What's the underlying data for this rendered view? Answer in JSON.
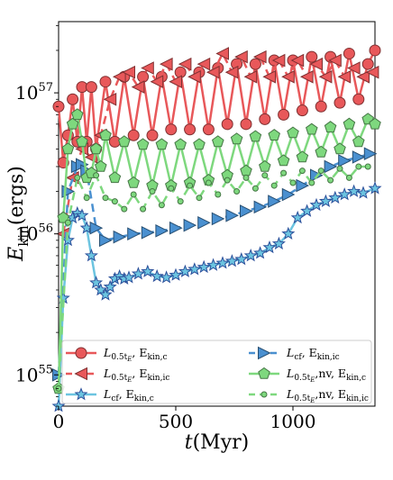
{
  "chart_data": {
    "type": "line",
    "xlabel": "t(Myr)",
    "ylabel": "E_kin(ergs)",
    "xlim": [
      0,
      1350
    ],
    "ylim": [
      6e+54,
      3.2e+57
    ],
    "yscale": "log",
    "x_ticks": [
      0,
      500,
      1000
    ],
    "x_tick_labels": [
      "0",
      "500",
      "1000"
    ],
    "y_ticks": [
      1e+55,
      1e+56,
      1e+57
    ],
    "y_tick_labels": [
      "10",
      "10",
      "10"
    ],
    "y_tick_exponents": [
      "55",
      "56",
      "57"
    ],
    "grid": false,
    "legend_position": "bottom",
    "series": [
      {
        "name": "L_{0.5tE}, E_{kin,c}",
        "label_main": "L",
        "label_sub": "0.5t",
        "label_sub2": "E",
        "label_rest": ", E",
        "label_rest_sub": "kin,c",
        "color": "#e8585a",
        "marker": "circle",
        "dash": "solid",
        "x": [
          0,
          20,
          40,
          60,
          80,
          100,
          120,
          140,
          160,
          200,
          240,
          280,
          320,
          360,
          400,
          440,
          480,
          520,
          560,
          600,
          640,
          680,
          720,
          760,
          800,
          840,
          880,
          920,
          960,
          1000,
          1040,
          1080,
          1120,
          1160,
          1200,
          1240,
          1280,
          1320,
          1350
        ],
        "y": [
          8e+56,
          3.2e+56,
          5e+56,
          9e+56,
          4.5e+56,
          1.1e+57,
          4.5e+56,
          1.1e+57,
          4e+56,
          1.2e+57,
          4.5e+56,
          1.3e+57,
          5e+56,
          1.3e+57,
          5e+56,
          1.3e+57,
          5.5e+56,
          1.4e+57,
          5.5e+56,
          1.4e+57,
          5.5e+56,
          1.5e+57,
          6e+56,
          1.6e+57,
          6e+56,
          1.6e+57,
          6.5e+56,
          1.7e+57,
          7e+56,
          1.7e+57,
          7.5e+56,
          1.8e+57,
          8e+56,
          1.8e+57,
          8.5e+56,
          1.9e+57,
          9e+56,
          1.6e+57,
          2e+57
        ]
      },
      {
        "name": "L_{0.5tE}, E_{kin,ic}",
        "label_main": "L",
        "label_sub": "0.5t",
        "label_sub2": "E",
        "label_rest": ", E",
        "label_rest_sub": "kin,ic",
        "color": "#e8585a",
        "marker": "triangle-left",
        "dash": "dashed",
        "x": [
          20,
          60,
          100,
          140,
          180,
          220,
          260,
          300,
          340,
          380,
          420,
          460,
          500,
          540,
          580,
          620,
          660,
          700,
          740,
          780,
          820,
          860,
          900,
          940,
          980,
          1020,
          1060,
          1100,
          1140,
          1180,
          1220,
          1260,
          1300,
          1340
        ],
        "y": [
          1e+56,
          2.5e+56,
          4e+56,
          3.5e+56,
          5e+56,
          9e+56,
          1.3e+57,
          1.4e+57,
          1.1e+57,
          1.5e+57,
          1.2e+57,
          1.6e+57,
          1.2e+57,
          1.6e+57,
          1.3e+57,
          1.6e+57,
          1.4e+57,
          1.9e+57,
          1.4e+57,
          1.8e+57,
          1.3e+57,
          1.8e+57,
          1.3e+57,
          1.7e+57,
          1.3e+57,
          1.7e+57,
          1.3e+57,
          1.6e+57,
          1.3e+57,
          1.7e+57,
          1.3e+57,
          1.5e+57,
          1.3e+57,
          1.4e+57
        ]
      },
      {
        "name": "L_cf, E_{kin,c}",
        "label_main": "L",
        "label_sub": "cf",
        "label_sub2": "",
        "label_rest": ", E",
        "label_rest_sub": "kin,c",
        "color": "#6cc4e0",
        "marker": "star",
        "dash": "solid",
        "x": [
          0,
          20,
          40,
          60,
          80,
          100,
          120,
          140,
          160,
          180,
          200,
          220,
          240,
          260,
          280,
          300,
          340,
          380,
          420,
          460,
          500,
          540,
          580,
          620,
          660,
          700,
          740,
          780,
          820,
          860,
          900,
          940,
          980,
          1020,
          1060,
          1100,
          1140,
          1180,
          1220,
          1260,
          1300,
          1350
        ],
        "y": [
          6e+54,
          3.5e+55,
          9e+55,
          1.3e+56,
          1.4e+56,
          1.35e+56,
          1.1e+56,
          7e+55,
          4.5e+55,
          4e+55,
          3.7e+55,
          4.2e+55,
          4.8e+55,
          5e+55,
          4.8e+55,
          4.9e+55,
          5.2e+55,
          5.4e+55,
          5e+55,
          4.9e+55,
          5.1e+55,
          5.4e+55,
          5.6e+55,
          5.8e+55,
          6e+55,
          6.2e+55,
          6.4e+55,
          6.6e+55,
          7e+55,
          7.3e+55,
          8e+55,
          8.5e+55,
          1e+56,
          1.3e+56,
          1.45e+56,
          1.6e+56,
          1.7e+56,
          1.8e+56,
          1.9e+56,
          2e+56,
          1.95e+56,
          2.1e+56
        ]
      },
      {
        "name": "L_cf, E_{kin,ic}",
        "label_main": "L",
        "label_sub": "cf",
        "label_sub2": "",
        "label_rest": ", E",
        "label_rest_sub": "kin,ic",
        "color": "#4a90d0",
        "marker": "triangle-right",
        "dash": "dashed",
        "x": [
          0,
          40,
          80,
          100,
          120,
          160,
          200,
          260,
          320,
          380,
          440,
          500,
          560,
          620,
          680,
          740,
          800,
          860,
          920,
          980,
          1040,
          1100,
          1160,
          1220,
          1280,
          1330
        ],
        "y": [
          1e+55,
          2e+56,
          3e+56,
          3.1e+56,
          2.8e+56,
          1.1e+56,
          9e+55,
          9.5e+55,
          1e+56,
          1.02e+56,
          1.05e+56,
          1.1e+56,
          1.15e+56,
          1.2e+56,
          1.28e+56,
          1.35e+56,
          1.45e+56,
          1.55e+56,
          1.7e+56,
          1.9e+56,
          2.2e+56,
          2.6e+56,
          3e+56,
          3.3e+56,
          3.5e+56,
          3.7e+56
        ]
      },
      {
        "name": "L_{0.5tE,nv}, E_{kin,c}",
        "label_main": "L",
        "label_sub": "0.5t",
        "label_sub2": "E",
        "label_rest": ",nv, E",
        "label_rest_sub": "kin,c",
        "color": "#7ed87e",
        "marker": "pentagon",
        "dash": "solid",
        "x": [
          0,
          20,
          40,
          60,
          80,
          100,
          120,
          140,
          160,
          180,
          200,
          240,
          280,
          320,
          360,
          400,
          440,
          480,
          520,
          560,
          600,
          640,
          680,
          720,
          760,
          800,
          840,
          880,
          920,
          960,
          1000,
          1040,
          1080,
          1120,
          1160,
          1200,
          1240,
          1280,
          1320,
          1350
        ],
        "y": [
          8e+54,
          1.3e+56,
          4e+56,
          6e+56,
          7e+56,
          4.5e+56,
          2.5e+56,
          2.7e+56,
          4e+56,
          3e+56,
          5e+56,
          2.5e+56,
          4.5e+56,
          2.3e+56,
          4.3e+56,
          2.2e+56,
          4.3e+56,
          2.2e+56,
          4.3e+56,
          2.3e+56,
          4.3e+56,
          2.4e+56,
          4.5e+56,
          2.6e+56,
          4.7e+56,
          2.8e+56,
          4.9e+56,
          3e+56,
          5e+56,
          3.3e+56,
          5.2e+56,
          3.5e+56,
          5.5e+56,
          3.8e+56,
          5.7e+56,
          4e+56,
          6e+56,
          4.5e+56,
          6.5e+56,
          6e+56
        ]
      },
      {
        "name": "L_{0.5tE,nv}, E_{kin,ic}",
        "label_main": "L",
        "label_sub": "0.5t",
        "label_sub2": "E",
        "label_rest": ",nv, E",
        "label_rest_sub": "kin,ic",
        "color": "#7ed87e",
        "marker": "small-circle",
        "dash": "dashed",
        "x": [
          0,
          40,
          80,
          120,
          160,
          200,
          240,
          280,
          320,
          360,
          400,
          440,
          480,
          520,
          560,
          600,
          640,
          680,
          720,
          760,
          800,
          840,
          880,
          920,
          960,
          1000,
          1040,
          1080,
          1120,
          1160,
          1200,
          1240,
          1280,
          1320
        ],
        "y": [
          8e+54,
          1.2e+56,
          2.5e+56,
          1.8e+56,
          2.6e+56,
          1.8e+56,
          1.7e+56,
          1.5e+56,
          1.9e+56,
          1.5e+56,
          2e+56,
          1.6e+56,
          2.1e+56,
          1.7e+56,
          2.2e+56,
          1.8e+56,
          2.3e+56,
          1.9e+56,
          2.4e+56,
          2e+56,
          2.5e+56,
          2.1e+56,
          2.6e+56,
          2.2e+56,
          2.7e+56,
          2.3e+56,
          2.8e+56,
          2.3e+56,
          2.8e+56,
          2.4e+56,
          2.9e+56,
          2.5e+56,
          3e+56,
          3e+56
        ]
      }
    ]
  }
}
